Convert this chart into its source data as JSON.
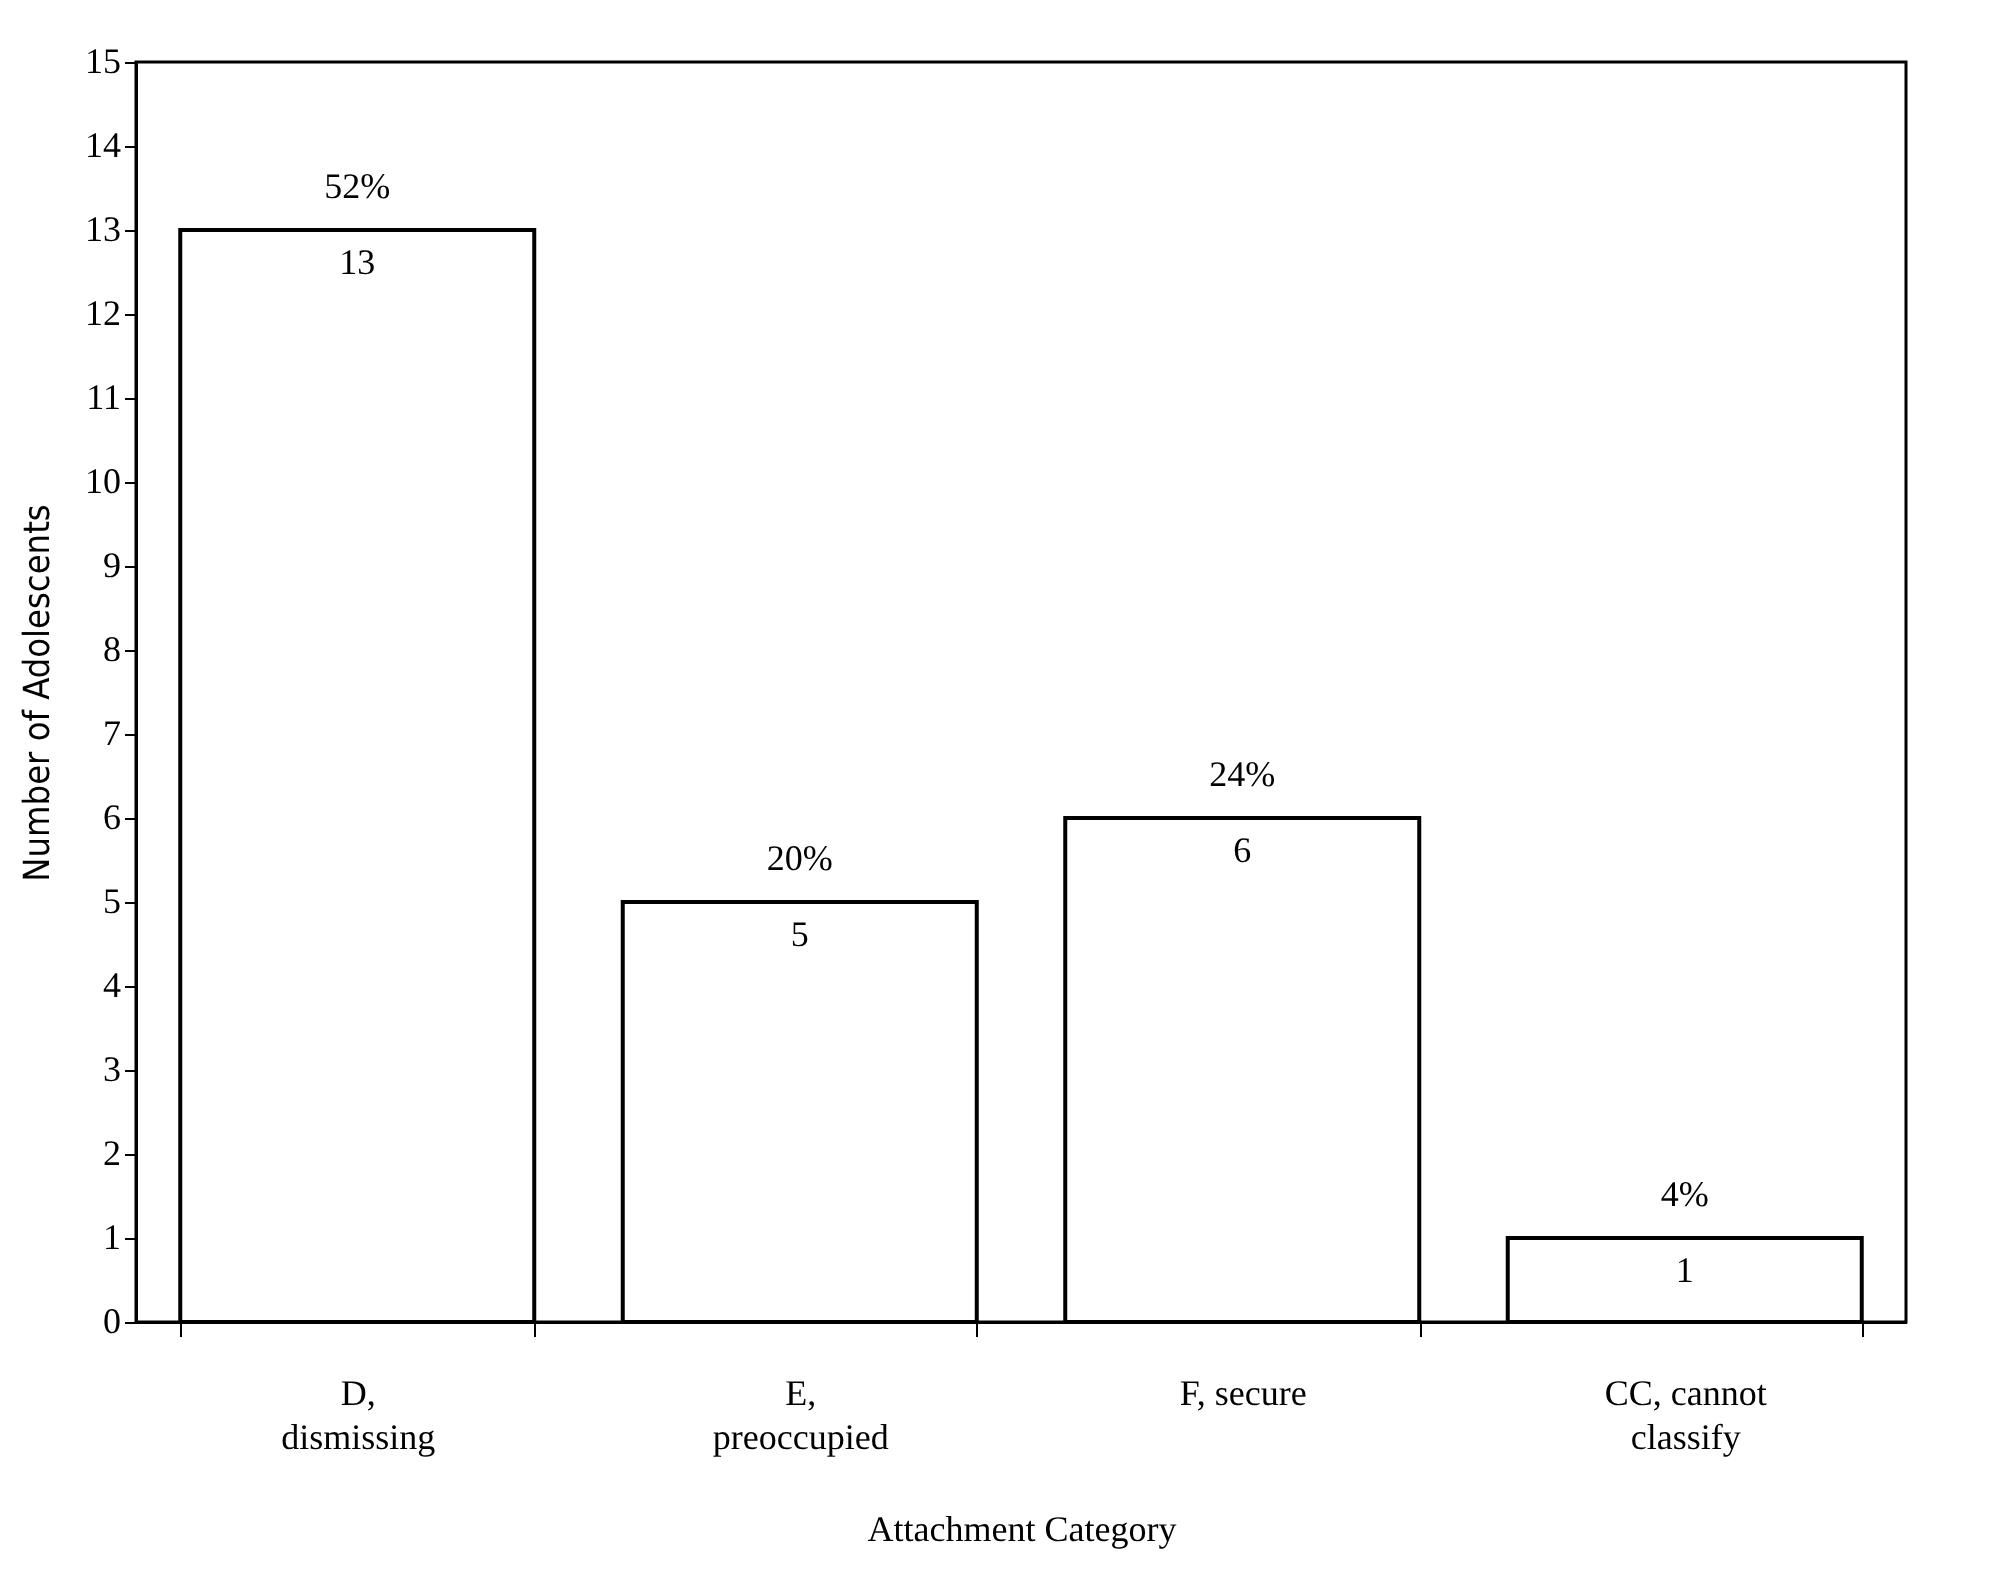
{
  "chart_data": {
    "type": "bar",
    "xlabel": "Attachment Category",
    "ylabel": "Number of Adolescents",
    "categories": [
      "D,\ndismissing",
      "E,\npreoccupied",
      "F, secure",
      "CC, cannot\nclassify"
    ],
    "values": [
      13,
      5,
      6,
      1
    ],
    "color": "#ffffff",
    "value_labels": [
      "13",
      "5",
      "6",
      "1"
    ],
    "annotations": [
      {
        "text": "52%",
        "x": "D,\ndismissing",
        "y": 13
      },
      {
        "text": "20%",
        "x": "E,\npreoccupied",
        "y": 5
      },
      {
        "text": "24%",
        "x": "F, secure",
        "y": 6
      },
      {
        "text": "4%",
        "x": "CC, cannot\nclassify",
        "y": 1
      }
    ],
    "ylim": [
      0,
      15
    ],
    "yticks": [
      0,
      1,
      2,
      3,
      4,
      5,
      6,
      7,
      8,
      9,
      10,
      11,
      12,
      13,
      14,
      15
    ],
    "grid": false
  }
}
